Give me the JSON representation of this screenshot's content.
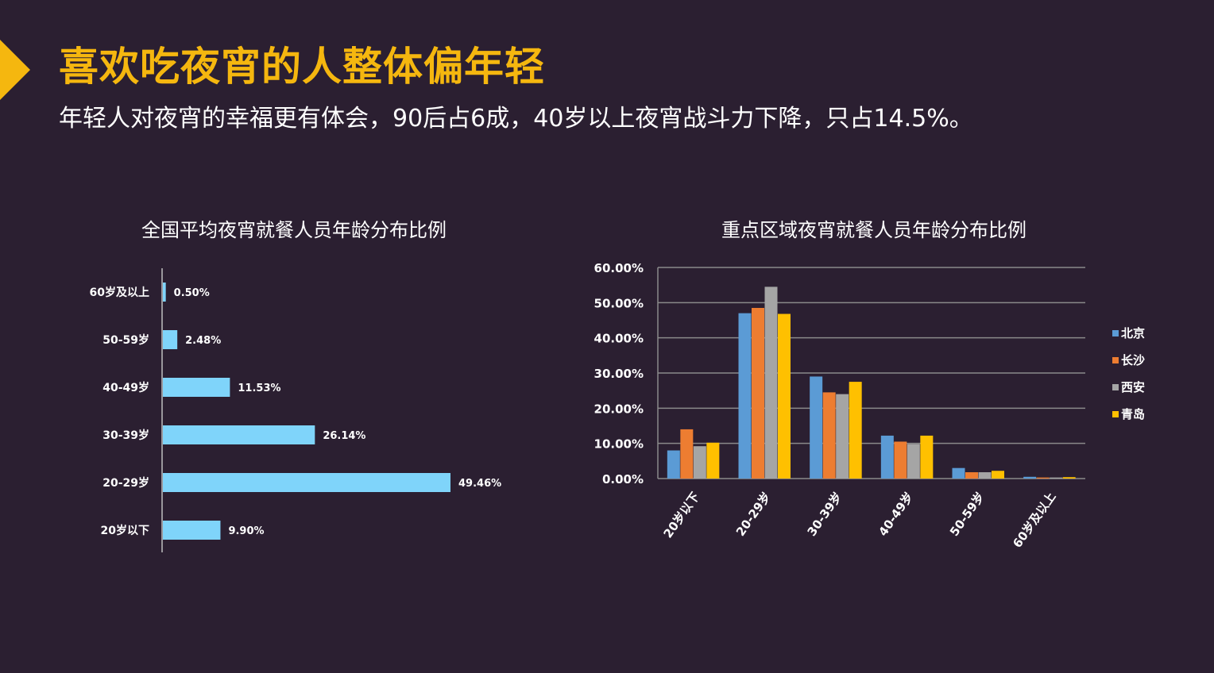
{
  "header": {
    "title": "喜欢吃夜宵的人整体偏年轻",
    "subtitle": "年轻人对夜宵的幸福更有体会，90后占6成，40岁以上夜宵战斗力下降，只占14.5%。"
  },
  "colors": {
    "background": "#2b1f31",
    "accent": "#f5b70f",
    "bar_left": "#7fd4fa"
  },
  "chart_data": [
    {
      "type": "bar",
      "orientation": "horizontal",
      "title": "全国平均夜宵就餐人员年龄分布比例",
      "categories": [
        "60岁及以上",
        "50-59岁",
        "40-49岁",
        "30-39岁",
        "20-29岁",
        "20岁以下"
      ],
      "values": [
        0.5,
        2.48,
        11.53,
        26.14,
        49.46,
        9.9
      ],
      "labels": [
        "0.50%",
        "2.48%",
        "11.53%",
        "26.14%",
        "49.46%",
        "9.90%"
      ],
      "xlim": [
        0,
        55
      ]
    },
    {
      "type": "bar",
      "title": "重点区域夜宵就餐人员年龄分布比例",
      "categories": [
        "20岁以下",
        "20-29岁",
        "30-39岁",
        "40-49岁",
        "50-59岁",
        "60岁及以上"
      ],
      "series": [
        {
          "name": "北京",
          "color": "#5b9bd5",
          "values": [
            8.0,
            47.0,
            29.0,
            12.2,
            3.0,
            0.5
          ]
        },
        {
          "name": "长沙",
          "color": "#ed7d31",
          "values": [
            14.0,
            48.5,
            24.5,
            10.5,
            1.8,
            0.3
          ]
        },
        {
          "name": "西安",
          "color": "#a5a5a5",
          "values": [
            9.2,
            54.5,
            24.0,
            9.8,
            1.8,
            0.3
          ]
        },
        {
          "name": "青岛",
          "color": "#ffc000",
          "values": [
            10.2,
            46.8,
            27.5,
            12.2,
            2.2,
            0.4
          ]
        }
      ],
      "yticks": [
        "0.00%",
        "10.00%",
        "20.00%",
        "30.00%",
        "40.00%",
        "50.00%",
        "60.00%"
      ],
      "ylim": [
        0,
        60
      ],
      "grid": true,
      "legend": "right"
    }
  ]
}
